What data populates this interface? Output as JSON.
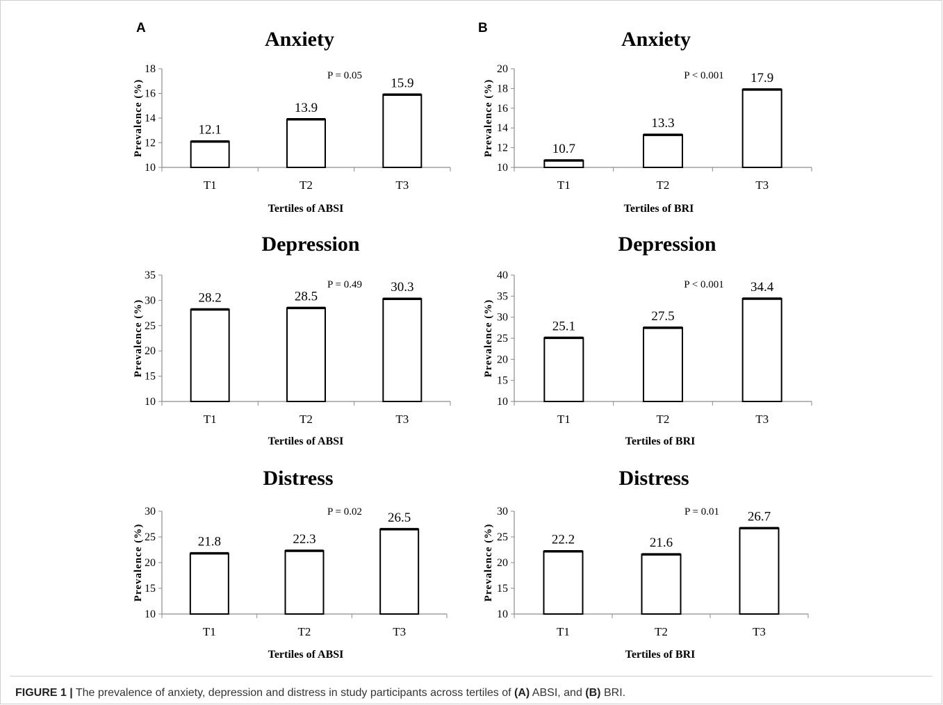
{
  "panels": [
    {
      "letter": "A",
      "xlabel": "Tertiles of ABSI"
    },
    {
      "letter": "B",
      "xlabel": "Tertiles of BRI"
    }
  ],
  "caption": {
    "label": "FIGURE 1 |",
    "t1": " The prevalence of anxiety, depression and distress in study participants across tertiles of ",
    "b1": "(A)",
    "t2": " ABSI, and ",
    "b2": "(B)",
    "t3": " BRI."
  },
  "chart_data": [
    {
      "panel": "A",
      "type": "bar",
      "title": "Anxiety",
      "categories": [
        "T1",
        "T2",
        "T3"
      ],
      "values": [
        12.1,
        13.9,
        15.9
      ],
      "xlabel": "Tertiles of ABSI",
      "ylabel": "Prevalence (%)",
      "ylim": [
        10,
        18
      ],
      "yticks": [
        10,
        12,
        14,
        16,
        18
      ],
      "annotation": "P = 0.05",
      "grid": false
    },
    {
      "panel": "B",
      "type": "bar",
      "title": "Anxiety",
      "categories": [
        "T1",
        "T2",
        "T3"
      ],
      "values": [
        10.7,
        13.3,
        17.9
      ],
      "xlabel": "Tertiles of BRI",
      "ylabel": "Prevalence (%)",
      "ylim": [
        10,
        20
      ],
      "yticks": [
        10,
        12,
        14,
        16,
        18,
        20
      ],
      "annotation": "P < 0.001",
      "grid": false
    },
    {
      "panel": "A",
      "type": "bar",
      "title": "Depression",
      "categories": [
        "T1",
        "T2",
        "T3"
      ],
      "values": [
        28.2,
        28.5,
        30.3
      ],
      "xlabel": "Tertiles of ABSI",
      "ylabel": "Prevalence (%)",
      "ylim": [
        10,
        35
      ],
      "yticks": [
        10,
        15,
        20,
        25,
        30,
        35
      ],
      "annotation": "P = 0.49",
      "grid": false
    },
    {
      "panel": "B",
      "type": "bar",
      "title": "Depression",
      "categories": [
        "T1",
        "T2",
        "T3"
      ],
      "values": [
        25.1,
        27.5,
        34.4
      ],
      "xlabel": "Tertiles of BRI",
      "ylabel": "Prevalence (%)",
      "ylim": [
        10,
        40
      ],
      "yticks": [
        10,
        15,
        20,
        25,
        30,
        35,
        40
      ],
      "annotation": "P < 0.001",
      "grid": false
    },
    {
      "panel": "A",
      "type": "bar",
      "title": "Distress",
      "categories": [
        "T1",
        "T2",
        "T3"
      ],
      "values": [
        21.8,
        22.3,
        26.5
      ],
      "xlabel": "Tertiles of ABSI",
      "ylabel": "Prevalence (%)",
      "ylim": [
        10,
        30
      ],
      "yticks": [
        10,
        15,
        20,
        25,
        30
      ],
      "annotation": "P = 0.02",
      "grid": false
    },
    {
      "panel": "B",
      "type": "bar",
      "title": "Distress",
      "categories": [
        "T1",
        "T2",
        "T3"
      ],
      "values": [
        22.2,
        21.6,
        26.7
      ],
      "xlabel": "Tertiles of BRI",
      "ylabel": "Prevalence (%)",
      "ylim": [
        10,
        30
      ],
      "yticks": [
        10,
        15,
        20,
        25,
        30
      ],
      "annotation": "P = 0.01",
      "grid": false
    }
  ]
}
